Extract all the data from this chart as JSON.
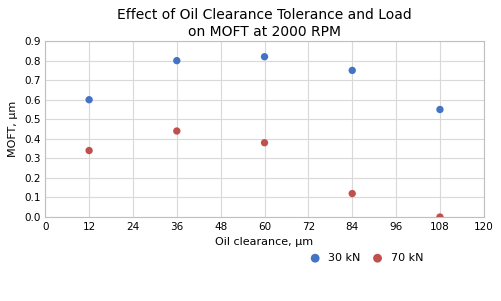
{
  "title": "Effect of Oil Clearance Tolerance and Load\non MOFT at 2000 RPM",
  "xlabel": "Oil clearance, μm",
  "ylabel": "MOFT, μm",
  "series": [
    {
      "label": "30 kN",
      "color": "#4472C4",
      "x": [
        12,
        36,
        60,
        84,
        108
      ],
      "y": [
        0.6,
        0.8,
        0.82,
        0.75,
        0.55
      ]
    },
    {
      "label": "70 kN",
      "color": "#C0504D",
      "x": [
        12,
        36,
        60,
        84,
        108
      ],
      "y": [
        0.34,
        0.44,
        0.38,
        0.12,
        0.0
      ]
    }
  ],
  "xlim": [
    0,
    120
  ],
  "ylim": [
    0,
    0.9
  ],
  "xticks": [
    0,
    12,
    24,
    36,
    48,
    60,
    72,
    84,
    96,
    108,
    120
  ],
  "yticks": [
    0.0,
    0.1,
    0.2,
    0.3,
    0.4,
    0.5,
    0.6,
    0.7,
    0.8,
    0.9
  ],
  "marker_size": 28,
  "grid": true,
  "background_color": "#ffffff",
  "title_fontsize": 10,
  "axis_label_fontsize": 8,
  "tick_fontsize": 7.5,
  "legend_fontsize": 8,
  "grid_color": "#D9D9D9",
  "spine_color": "#BFBFBF"
}
